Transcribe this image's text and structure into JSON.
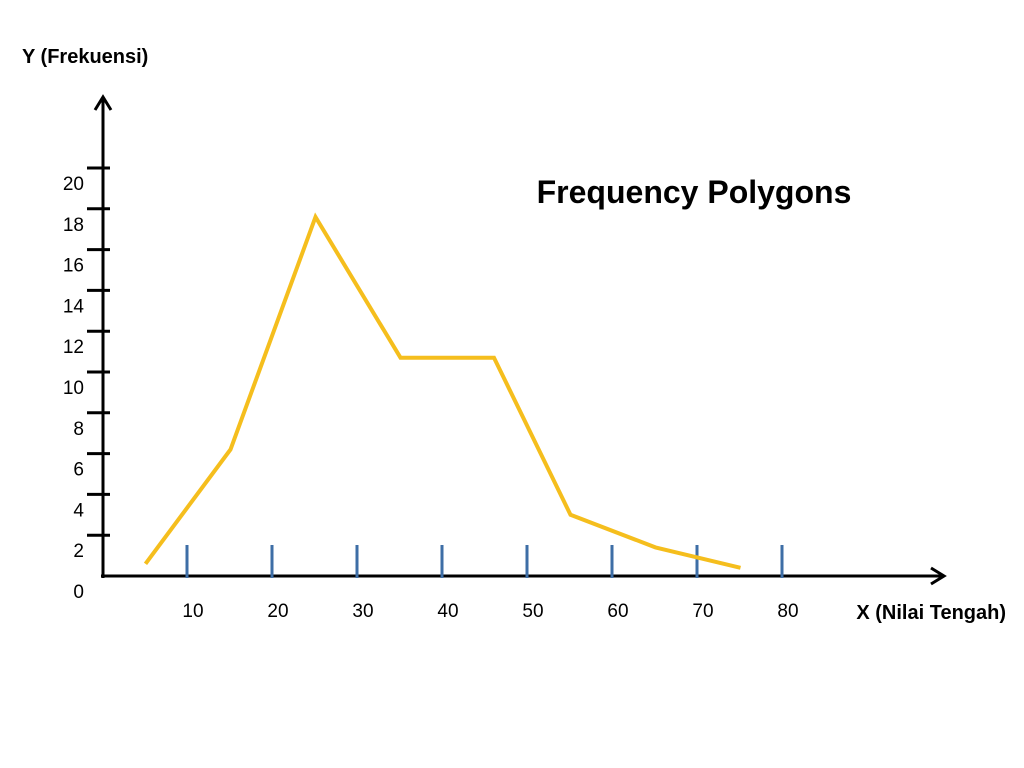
{
  "chart_data": {
    "type": "line",
    "title": "Frequency Polygons",
    "xlabel": "X (Nilai Tengah)",
    "ylabel": "Y (Frekuensi)",
    "x_ticks": [
      10,
      20,
      30,
      40,
      50,
      60,
      70,
      80
    ],
    "y_ticks": [
      0,
      2,
      4,
      6,
      8,
      10,
      12,
      14,
      16,
      18,
      20
    ],
    "xlim": [
      0,
      100
    ],
    "ylim": [
      0,
      21
    ],
    "grid": false,
    "legend": "none",
    "series": [
      {
        "color": "#F5BE1D",
        "points": [
          {
            "x": 5,
            "y": 0.6
          },
          {
            "x": 15,
            "y": 6.2
          },
          {
            "x": 25,
            "y": 17.6
          },
          {
            "x": 35,
            "y": 10.7
          },
          {
            "x": 46,
            "y": 10.7
          },
          {
            "x": 55,
            "y": 3.0
          },
          {
            "x": 65,
            "y": 1.4
          },
          {
            "x": 75,
            "y": 0.4
          }
        ]
      }
    ],
    "colors": {
      "axis": "#000000",
      "x_tick_marks": "#3E6EA6"
    }
  }
}
